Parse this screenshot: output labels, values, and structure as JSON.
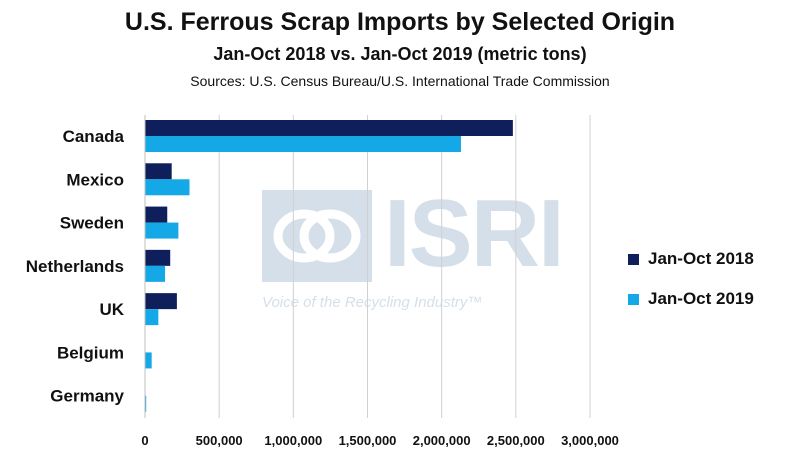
{
  "header": {
    "title": "U.S. Ferrous Scrap Imports by Selected Origin",
    "subtitle": "Jan-Oct 2018 vs. Jan-Oct 2019 (metric tons)",
    "source": "Sources: U.S. Census Bureau/U.S. International Trade Commission"
  },
  "watermark": {
    "brand": "ISRI",
    "tagline": "Voice of the Recycling Industry™",
    "color": "#6d8fb3"
  },
  "chart_data": {
    "type": "bar",
    "orientation": "horizontal",
    "categories": [
      "Canada",
      "Mexico",
      "Sweden",
      "Netherlands",
      "UK",
      "Belgium",
      "Germany"
    ],
    "series": [
      {
        "name": "Jan-Oct 2018",
        "color": "#0f1f5c",
        "values": [
          2480000,
          180000,
          150000,
          170000,
          215000,
          0,
          0
        ]
      },
      {
        "name": "Jan-Oct 2019",
        "color": "#14a9e6",
        "values": [
          2130000,
          300000,
          225000,
          135000,
          90000,
          45000,
          8000
        ]
      }
    ],
    "xlim": [
      0,
      3000000
    ],
    "xticks": [
      "0",
      "500,000",
      "1,000,000",
      "1,500,000",
      "2,000,000",
      "2,500,000",
      "3,000,000"
    ],
    "xtick_values": [
      0,
      500000,
      1000000,
      1500000,
      2000000,
      2500000,
      3000000
    ],
    "grid": true,
    "legend_position": "right"
  }
}
